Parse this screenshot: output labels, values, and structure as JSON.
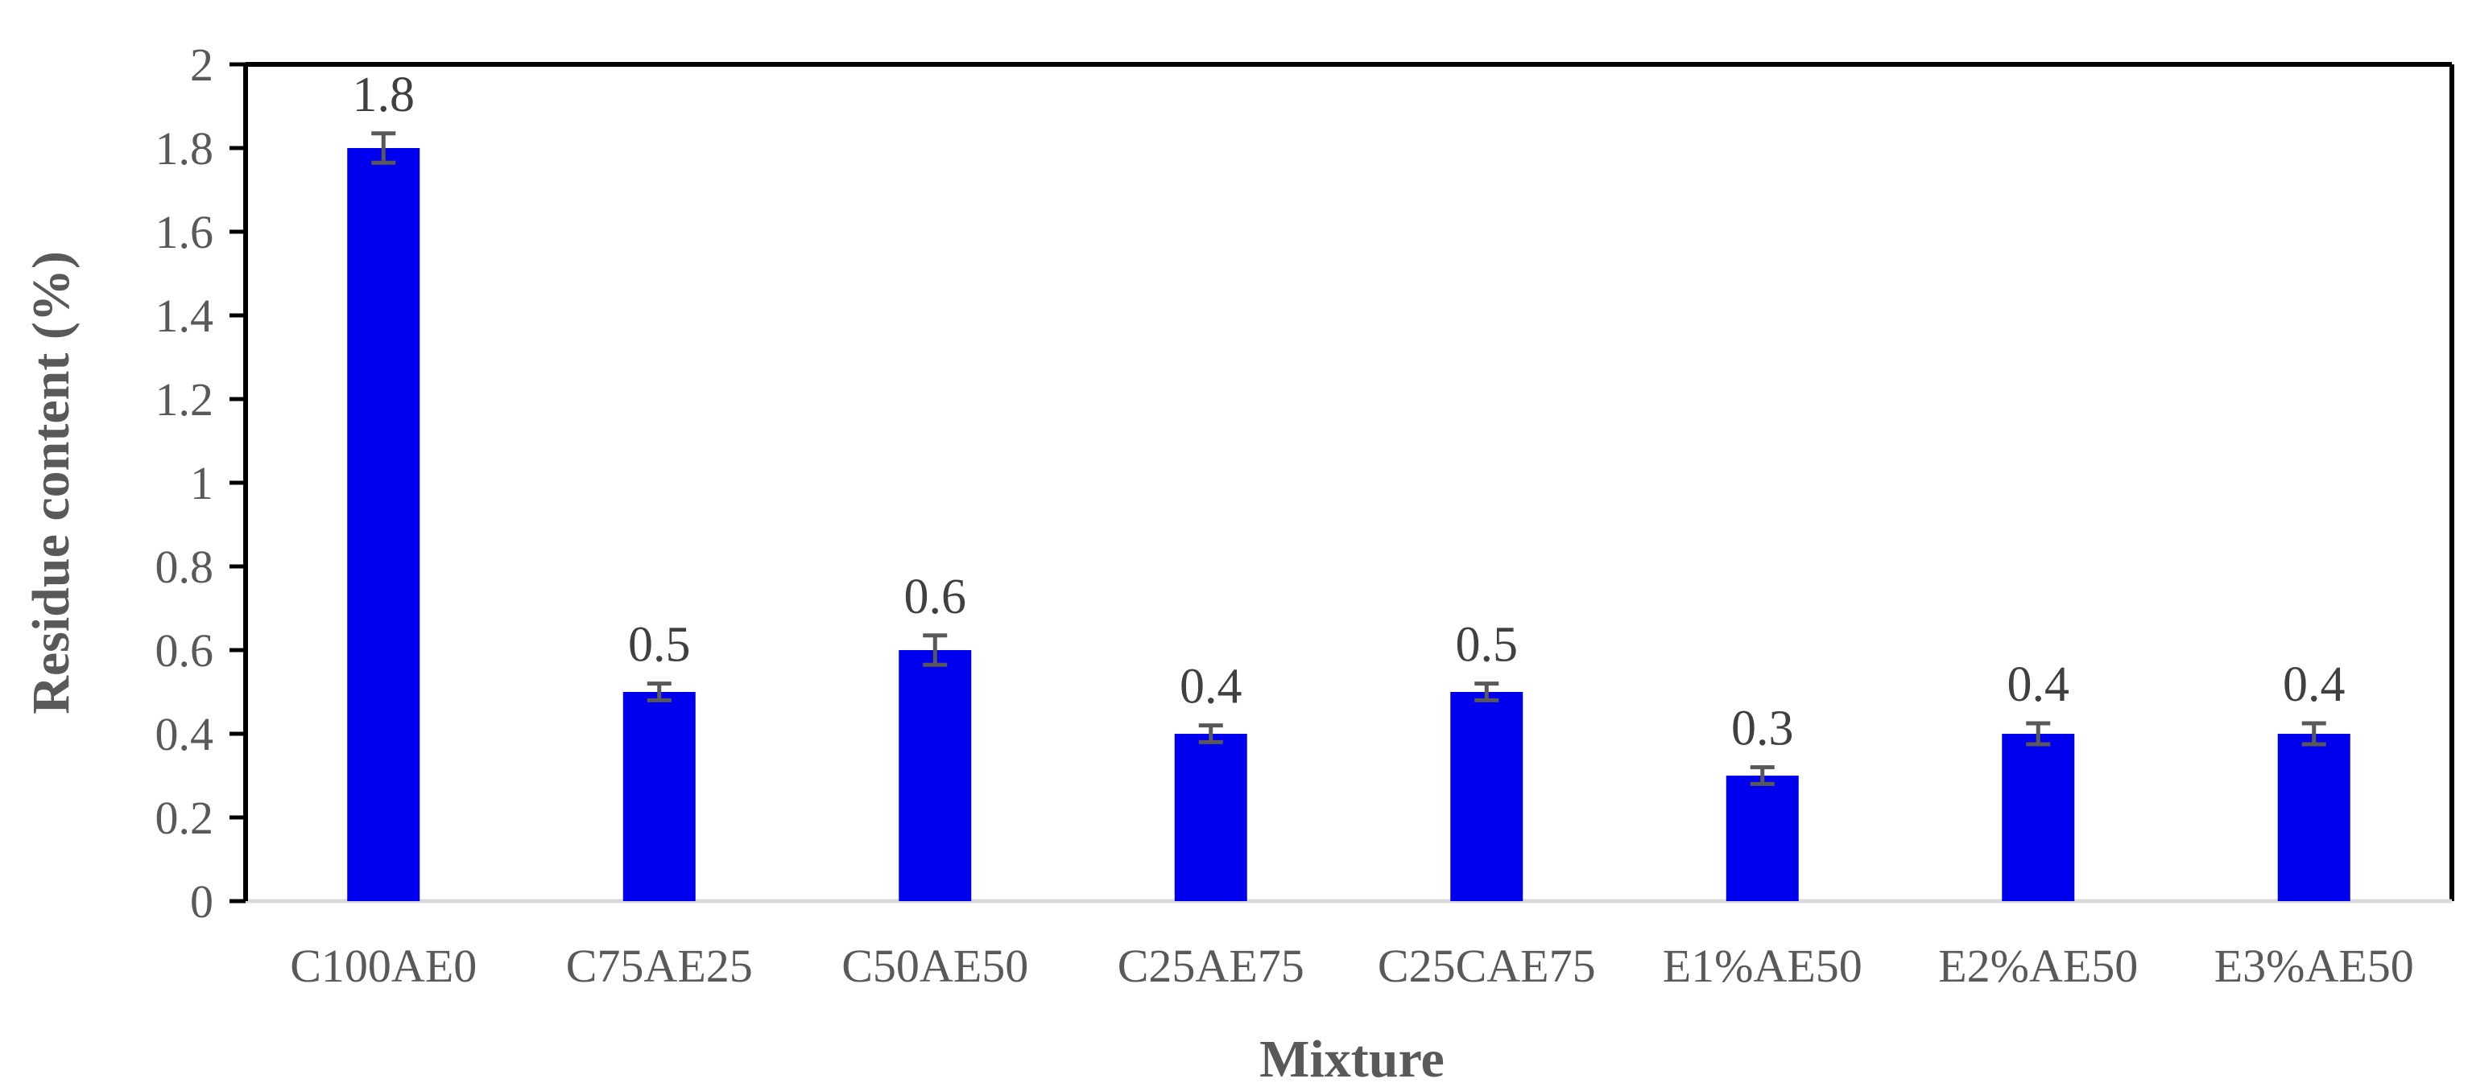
{
  "chart_data": {
    "type": "bar",
    "categories": [
      "C100AE0",
      "C75AE25",
      "C50AE50",
      "C25AE75",
      "C25CAE75",
      "E1%AE50",
      "E2%AE50",
      "E3%AE50"
    ],
    "values": [
      1.8,
      0.5,
      0.6,
      0.4,
      0.5,
      0.3,
      0.4,
      0.4
    ],
    "error": [
      0.035,
      0.02,
      0.035,
      0.02,
      0.02,
      0.02,
      0.025,
      0.025
    ],
    "data_labels": [
      "1.8",
      "0.5",
      "0.6",
      "0.4",
      "0.5",
      "0.3",
      "0.4",
      "0.4"
    ],
    "xlabel": "Mixture",
    "ylabel": "Residue content (%)",
    "ylim": [
      0,
      2
    ],
    "yticks": [
      0,
      0.2,
      0.4,
      0.6,
      0.8,
      1,
      1.2,
      1.4,
      1.6,
      1.8,
      2
    ],
    "ytick_labels": [
      "0",
      "0.2",
      "0.4",
      "0.6",
      "0.8",
      "1",
      "1.2",
      "1.4",
      "1.6",
      "1.8",
      "2"
    ],
    "grid": false,
    "legend": "none",
    "colors": {
      "bar": "#0000ee",
      "error_bar": "#595959",
      "axis": "#000000",
      "baseline": "#d9d9d9"
    }
  }
}
